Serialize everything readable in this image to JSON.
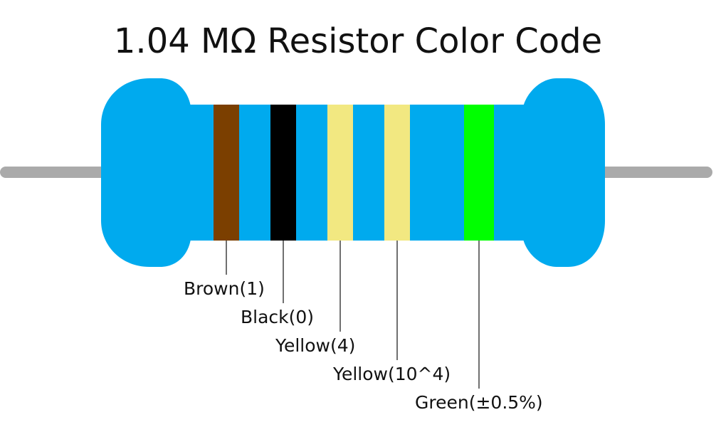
{
  "title": "1.04 MΩ Resistor Color Code",
  "body_color": "#00AAEE",
  "lead_color": "#AAAAAA",
  "bands": [
    {
      "label": "Brown(1)",
      "color": "#7B3F00"
    },
    {
      "label": "Black(0)",
      "color": "#000000"
    },
    {
      "label": "Yellow(4)",
      "color": "#F2E881"
    },
    {
      "label": "Yellow(10^4)",
      "color": "#F2E881"
    },
    {
      "label": "Green(±0.5%)",
      "color": "#00FF00"
    }
  ]
}
